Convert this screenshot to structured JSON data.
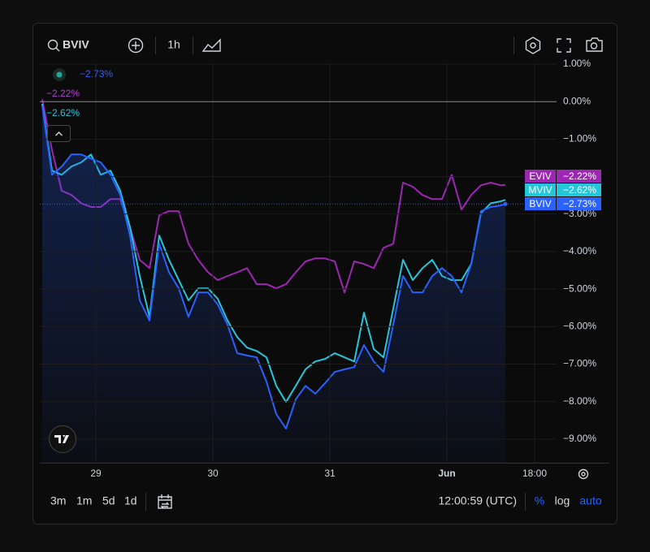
{
  "toolbar": {
    "interval": "1h",
    "ranges": [
      "3m",
      "1m",
      "5d",
      "1d"
    ],
    "clock": "12:00:59 (UTC)",
    "scale_modes": [
      "%",
      "log",
      "auto"
    ]
  },
  "chart_data": {
    "type": "line",
    "x": [
      -11,
      -9,
      -7,
      -5,
      -3,
      -1,
      1,
      3,
      5,
      7,
      9,
      11,
      13,
      15,
      17,
      19,
      21,
      23,
      25,
      27,
      29,
      31,
      33,
      35,
      37,
      39,
      41,
      43,
      45,
      47,
      49,
      51,
      53,
      55,
      57,
      59,
      61,
      63,
      65,
      67,
      69,
      71,
      73,
      75,
      77,
      79,
      81,
      83,
      84
    ],
    "xlim": [
      -11.5,
      94.5
    ],
    "xticks": [
      {
        "value": 0,
        "label": "29"
      },
      {
        "value": 24,
        "label": "30"
      },
      {
        "value": 48,
        "label": "31"
      },
      {
        "value": 72,
        "label": "Jun"
      },
      {
        "value": 90,
        "label": "18:00"
      }
    ],
    "ylim": [
      -9.63,
      1.0
    ],
    "yticks": [
      {
        "value": 1,
        "label": "1.00%"
      },
      {
        "value": 0,
        "label": "0.00%"
      },
      {
        "value": -1,
        "label": "−1.00%"
      },
      {
        "value": -2,
        "label": "−2.00%"
      },
      {
        "value": -3,
        "label": "−3.00%"
      },
      {
        "value": -4,
        "label": "−4.00%"
      },
      {
        "value": -5,
        "label": "−5.00%"
      },
      {
        "value": -6,
        "label": "−6.00%"
      },
      {
        "value": -7,
        "label": "−7.00%"
      },
      {
        "value": -8,
        "label": "−8.00%"
      },
      {
        "value": -9,
        "label": "−9.00%"
      }
    ],
    "grid": true,
    "series": [
      {
        "name": "EVIV",
        "color": "#9c27b0",
        "last_value": -2.22,
        "last_label": "−2.22%",
        "values": [
          0.06,
          -1.3,
          -2.38,
          -2.49,
          -2.71,
          -2.81,
          -2.81,
          -2.6,
          -2.6,
          -3.35,
          -4.22,
          -4.44,
          -3.03,
          -2.92,
          -2.92,
          -3.79,
          -4.22,
          -4.55,
          -4.76,
          -4.65,
          -4.55,
          -4.44,
          -4.87,
          -4.87,
          -4.98,
          -4.87,
          -4.55,
          -4.26,
          -4.18,
          -4.18,
          -4.26,
          -5.09,
          -4.26,
          -4.33,
          -4.44,
          -3.9,
          -3.79,
          -2.16,
          -2.27,
          -2.49,
          -2.6,
          -2.6,
          -1.95,
          -2.88,
          -2.49,
          -2.23,
          -2.16,
          -2.23,
          -2.22
        ]
      },
      {
        "name": "MVIV",
        "color": "#26c6da",
        "last_value": -2.62,
        "last_label": "−2.62%",
        "values": [
          -0.06,
          -1.84,
          -1.95,
          -1.73,
          -1.62,
          -1.41,
          -1.95,
          -1.84,
          -2.38,
          -3.35,
          -4.65,
          -5.74,
          -3.57,
          -4.22,
          -4.76,
          -5.3,
          -4.98,
          -4.98,
          -5.26,
          -5.84,
          -6.28,
          -6.56,
          -6.65,
          -6.82,
          -7.58,
          -8.01,
          -7.58,
          -7.14,
          -6.93,
          -6.86,
          -6.71,
          -6.82,
          -6.93,
          -5.63,
          -6.6,
          -6.82,
          -5.52,
          -4.22,
          -4.76,
          -4.44,
          -4.22,
          -4.65,
          -4.76,
          -4.76,
          -4.33,
          -2.97,
          -2.71,
          -2.66,
          -2.62
        ]
      },
      {
        "name": "BVIV",
        "color": "#2962ff",
        "last_value": -2.73,
        "last_label": "−2.73%",
        "area": true,
        "values": [
          -0.11,
          -1.95,
          -1.73,
          -1.41,
          -1.41,
          -1.52,
          -1.62,
          -1.95,
          -2.49,
          -3.57,
          -5.3,
          -5.84,
          -3.79,
          -4.55,
          -4.98,
          -5.74,
          -5.09,
          -5.09,
          -5.41,
          -5.95,
          -6.71,
          -6.77,
          -6.82,
          -7.47,
          -8.33,
          -8.72,
          -7.94,
          -7.58,
          -7.79,
          -7.51,
          -7.21,
          -7.14,
          -7.08,
          -6.49,
          -6.93,
          -7.21,
          -5.95,
          -4.65,
          -5.09,
          -5.09,
          -4.65,
          -4.44,
          -4.65,
          -5.09,
          -4.33,
          -2.92,
          -2.81,
          -2.77,
          -2.73
        ]
      }
    ]
  }
}
